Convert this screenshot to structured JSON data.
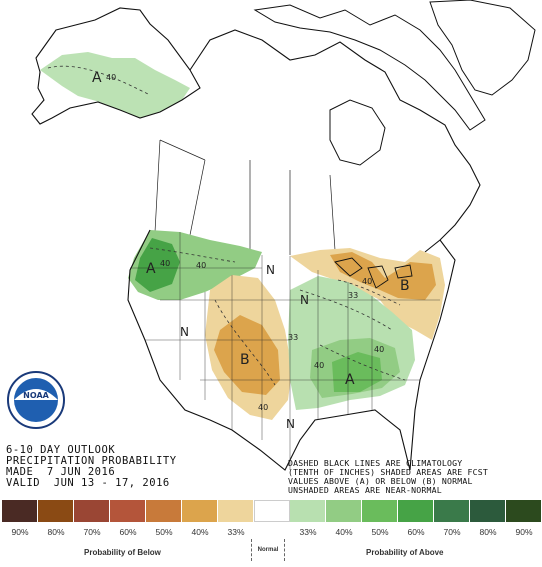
{
  "title": {
    "line1": "6-10 DAY OUTLOOK",
    "line2": "PRECIPITATION PROBABILITY",
    "line3": "MADE  7 JUN 2016",
    "line4": "VALID  JUN 13 - 17, 2016"
  },
  "note": {
    "line1": "DASHED BLACK LINES ARE CLIMATOLOGY",
    "line2": "(TENTH OF INCHES) SHADED AREAS ARE FCST",
    "line3": "VALUES ABOVE (A) OR BELOW (B) NORMAL",
    "line4": "UNSHADED AREAS ARE NEAR-NORMAL"
  },
  "logo": {
    "text": "NOAA"
  },
  "map_labels": {
    "alaska_above": "A",
    "alaska_40": "40",
    "nw_above": "A",
    "nw_40a": "40",
    "nw_40b": "40",
    "n_montana": "N",
    "n_west": "N",
    "n_texas": "N",
    "n_colorado": "N",
    "below_central": "B",
    "below_central_40": "40",
    "below_east": "B",
    "east_40": "40",
    "east_33": "33",
    "central_33": "33",
    "se_above": "A",
    "se_40a": "40",
    "se_40b": "40"
  },
  "legend": {
    "below_swatches": [
      {
        "label": "90%",
        "color": "#4a2a24"
      },
      {
        "label": "80%",
        "color": "#8a4a14"
      },
      {
        "label": "70%",
        "color": "#9a4634"
      },
      {
        "label": "60%",
        "color": "#b4553a"
      },
      {
        "label": "50%",
        "color": "#c87a3a"
      },
      {
        "label": "40%",
        "color": "#dca44c"
      },
      {
        "label": "33%",
        "color": "#eed59c"
      }
    ],
    "normal_swatch": {
      "label": "",
      "color": "#ffffff"
    },
    "above_swatches": [
      {
        "label": "33%",
        "color": "#b8e0b0"
      },
      {
        "label": "40%",
        "color": "#92cc84"
      },
      {
        "label": "50%",
        "color": "#6abc5c"
      },
      {
        "label": "60%",
        "color": "#46a346"
      },
      {
        "label": "70%",
        "color": "#3a7a4a"
      },
      {
        "label": "80%",
        "color": "#2c5a3c"
      },
      {
        "label": "90%",
        "color": "#2c4a1e"
      }
    ],
    "below_caption": "Probability of Below",
    "normal_caption": "Normal",
    "above_caption": "Probability of Above"
  }
}
